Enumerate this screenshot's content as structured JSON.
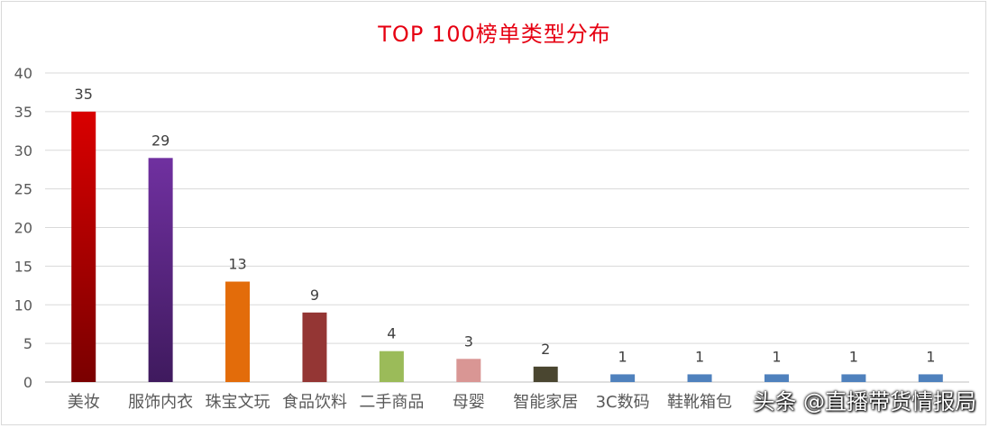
{
  "chart_data": {
    "type": "bar",
    "title": "TOP 100榜单类型分布",
    "categories": [
      "美妆",
      "服饰内衣",
      "珠宝文玩",
      "食品饮料",
      "二手商品",
      "母婴",
      "智能家居",
      "3C数码",
      "鞋靴箱包",
      "",
      "",
      ""
    ],
    "values": [
      35,
      29,
      13,
      9,
      4,
      3,
      2,
      1,
      1,
      1,
      1,
      1
    ],
    "data_labels": [
      "35",
      "29",
      "13",
      "9",
      "4",
      "3",
      "2",
      "1",
      "1",
      "1",
      "1",
      "1"
    ],
    "y_ticks": [
      "0",
      "5",
      "10",
      "15",
      "20",
      "25",
      "30",
      "35",
      "40"
    ],
    "ylim": [
      0,
      40
    ],
    "grid": true,
    "legend": "none",
    "colors": [
      "#d90000",
      "#7030a0",
      "#e36c0a",
      "#943634",
      "#9bbb59",
      "#d99694",
      "#4a4630",
      "#4f81bd",
      "#4f81bd",
      "#4f81bd",
      "#4f81bd",
      "#4f81bd"
    ],
    "gradient_bottom": [
      "#7a0000",
      "#3f1a5e",
      null,
      null,
      null,
      null,
      null,
      null,
      null,
      null,
      null,
      null
    ]
  },
  "watermark": "头条 @直播带货情报局"
}
